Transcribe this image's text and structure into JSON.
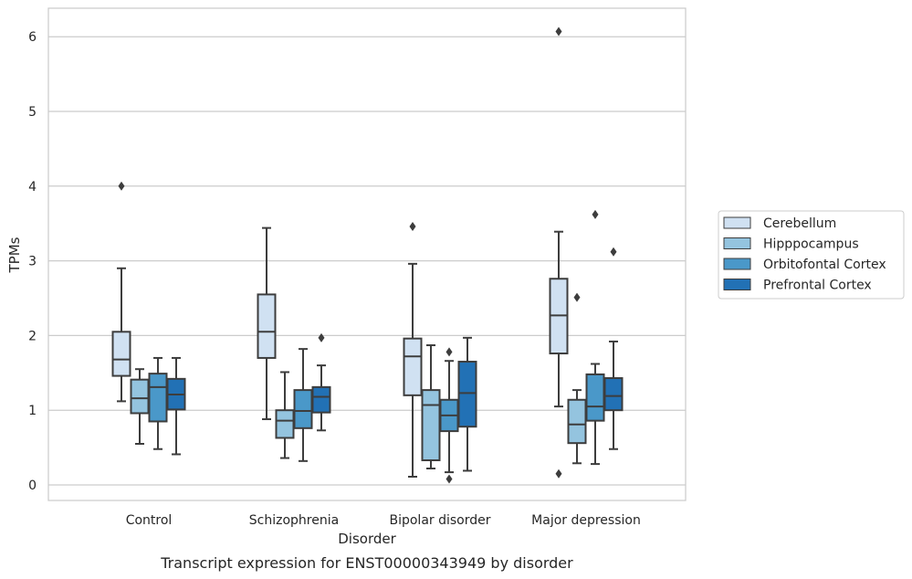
{
  "chart_data": {
    "type": "box",
    "caption": "Transcript expression for ENST00000343949 by disorder",
    "xlabel": "Disorder",
    "ylabel": "TPMs",
    "ylim": [
      -0.2,
      6.38
    ],
    "yticks": [
      "0",
      "1",
      "2",
      "3",
      "4",
      "5",
      "6"
    ],
    "grid": "horizontal",
    "legend_position": "right",
    "categories": [
      "Control",
      "Schizophrenia",
      "Bipolar disorder",
      "Major depression"
    ],
    "series": [
      {
        "name": "Cerebellum",
        "color": "#d0e1f2",
        "boxes": [
          {
            "whisker_low": 1.12,
            "q1": 1.46,
            "median": 1.68,
            "q3": 2.05,
            "whisker_high": 2.9,
            "outliers": [
              4.0
            ]
          },
          {
            "whisker_low": 0.88,
            "q1": 1.7,
            "median": 2.05,
            "q3": 2.55,
            "whisker_high": 3.44,
            "outliers": []
          },
          {
            "whisker_low": 0.11,
            "q1": 1.2,
            "median": 1.72,
            "q3": 1.96,
            "whisker_high": 2.96,
            "outliers": [
              3.46
            ]
          },
          {
            "whisker_low": 1.05,
            "q1": 1.76,
            "median": 2.27,
            "q3": 2.76,
            "whisker_high": 3.39,
            "outliers": [
              6.07,
              0.15
            ]
          }
        ]
      },
      {
        "name": "Hipppocampus",
        "color": "#94c4df",
        "boxes": [
          {
            "whisker_low": 0.55,
            "q1": 0.96,
            "median": 1.16,
            "q3": 1.41,
            "whisker_high": 1.55,
            "outliers": []
          },
          {
            "whisker_low": 0.36,
            "q1": 0.63,
            "median": 0.86,
            "q3": 1.0,
            "whisker_high": 1.51,
            "outliers": []
          },
          {
            "whisker_low": 0.22,
            "q1": 0.33,
            "median": 1.07,
            "q3": 1.27,
            "whisker_high": 1.87,
            "outliers": []
          },
          {
            "whisker_low": 0.29,
            "q1": 0.56,
            "median": 0.81,
            "q3": 1.14,
            "whisker_high": 1.27,
            "outliers": [
              2.51
            ]
          }
        ]
      },
      {
        "name": "Orbitofontal Cortex",
        "color": "#4a98c9",
        "boxes": [
          {
            "whisker_low": 0.48,
            "q1": 0.85,
            "median": 1.31,
            "q3": 1.49,
            "whisker_high": 1.7,
            "outliers": []
          },
          {
            "whisker_low": 0.32,
            "q1": 0.76,
            "median": 0.99,
            "q3": 1.27,
            "whisker_high": 1.82,
            "outliers": []
          },
          {
            "whisker_low": 0.17,
            "q1": 0.72,
            "median": 0.93,
            "q3": 1.14,
            "whisker_high": 1.66,
            "outliers": [
              1.78,
              0.08
            ]
          },
          {
            "whisker_low": 0.28,
            "q1": 0.86,
            "median": 1.05,
            "q3": 1.48,
            "whisker_high": 1.62,
            "outliers": [
              3.62
            ]
          }
        ]
      },
      {
        "name": "Prefrontal Cortex",
        "color": "#2271b5",
        "boxes": [
          {
            "whisker_low": 0.41,
            "q1": 1.01,
            "median": 1.21,
            "q3": 1.42,
            "whisker_high": 1.7,
            "outliers": []
          },
          {
            "whisker_low": 0.73,
            "q1": 0.97,
            "median": 1.18,
            "q3": 1.31,
            "whisker_high": 1.6,
            "outliers": [
              1.97
            ]
          },
          {
            "whisker_low": 0.19,
            "q1": 0.78,
            "median": 1.23,
            "q3": 1.65,
            "whisker_high": 1.97,
            "outliers": []
          },
          {
            "whisker_low": 0.48,
            "q1": 1.0,
            "median": 1.19,
            "q3": 1.43,
            "whisker_high": 1.92,
            "outliers": [
              3.12
            ]
          }
        ]
      }
    ]
  }
}
